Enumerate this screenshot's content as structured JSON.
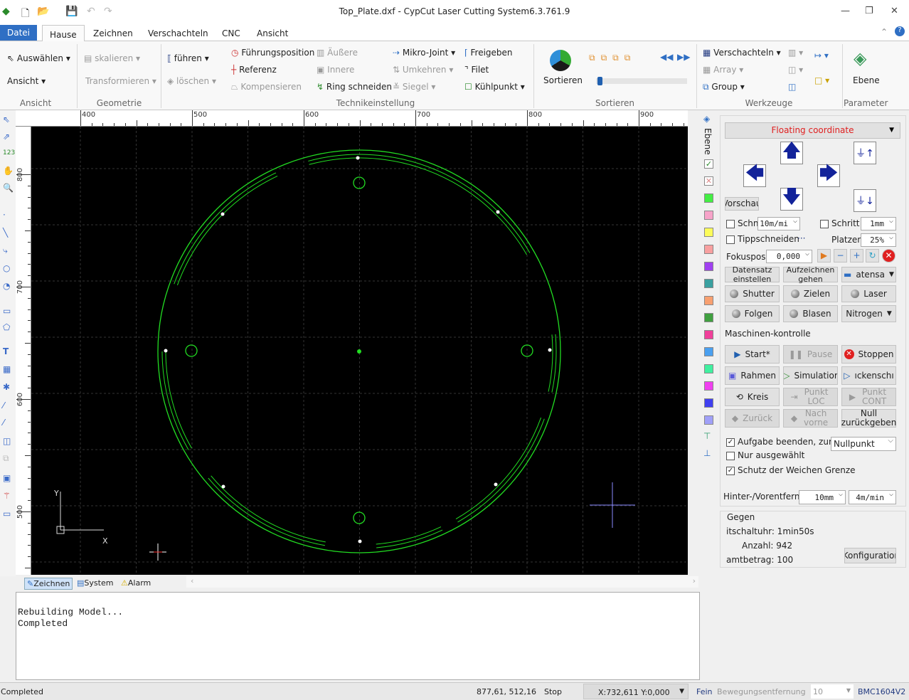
{
  "window": {
    "title": "Top_Plate.dxf - CypCut Laser Cutting System6.3.761.9"
  },
  "tabs": [
    "Datei",
    "Hause",
    "Zeichnen",
    "Verschachteln",
    "CNC",
    "Ansicht"
  ],
  "ribbon": {
    "ansicht": {
      "auswaehlen": "Auswählen",
      "ansicht": "Ansicht",
      "group": "Ansicht"
    },
    "geometrie": {
      "skalieren": "skalieren",
      "transformieren": "Transformieren",
      "group": "Geometrie"
    },
    "technik": {
      "fuehren": "führen",
      "loeschen": "löschen",
      "fuehrungsposition": "Führungsposition",
      "referenz": "Referenz",
      "kompensieren": "Kompensieren",
      "aeussere": "Äußere",
      "innere": "Innere",
      "ring": "Ring schneiden",
      "mikro": "Mikro-Joint",
      "umkehren": "Umkehren",
      "siegel": "Siegel",
      "freigeben": "Freigeben",
      "filet": "Filet",
      "kuehlpunkt": "Kühlpunkt",
      "group": "Technikeinstellung"
    },
    "sortieren": {
      "label": "Sortieren",
      "group": "Sortieren",
      "slider": 0.02
    },
    "werkzeuge": {
      "verschachteln": "Verschachteln",
      "array": "Array",
      "group_btn": "Group",
      "group": "Werkzeuge"
    },
    "parameter": {
      "ebene": "Ebene",
      "group": "Parameter"
    }
  },
  "rulers": {
    "h": [
      "400",
      "500",
      "600",
      "700",
      "800",
      "900"
    ],
    "v": [
      "800",
      "700",
      "600",
      "500"
    ]
  },
  "canvas": {
    "axis_x": "X",
    "axis_y": "Y",
    "path_color": "#22dd22"
  },
  "layers": {
    "title": "Ebene",
    "colors": [
      "#44ee44",
      "#f7a3c9",
      "#fcfc5a",
      "#f8a0a0",
      "#a040f0",
      "#3aa0a0",
      "#f8a070",
      "#40a040",
      "#f0409a",
      "#4aa0f0",
      "#40f0a0",
      "#f040f0",
      "#4040f0",
      "#a0a0f8"
    ]
  },
  "panel": {
    "mode": "Floating coordinate",
    "vorschau": "Vorschau",
    "schn_label": "Schn",
    "schn_value": "10m/mi",
    "schritt_label": "Schritt",
    "schritt_value": "1mm",
    "tippschneiden": "Tippschneiden",
    "tipp_more": "···",
    "platzen_label": "Platzen",
    "platzen_value": "25%",
    "fokus_label": "Fokusposit",
    "fokus_value": "0,000",
    "datensatz": "Datensatz einstellen",
    "aufzeichnen": "Aufzeichnen gehen",
    "datensatz2": "atensa",
    "shutter": "Shutter",
    "zielen": "Zielen",
    "laser": "Laser",
    "folgen": "Folgen",
    "blasen": "Blasen",
    "nitrogen": "Nitrogen",
    "mk_title": "Maschinen-kontrolle",
    "start": "Start*",
    "pause": "Pause",
    "stoppen": "Stoppen",
    "rahmen": "Rahmen",
    "simulation": "Simulatior",
    "lueckenschnitt": "ıckenschı",
    "kreis": "Kreis",
    "punkt_loc": "Punkt LOC",
    "punkt_cont": "Punkt CONT",
    "zurueck": "Zurück",
    "nach_vorne": "Nach vorne",
    "null": "Null zurückgeben",
    "aufgabe": "Aufgabe beenden, zurü",
    "aufgabe_checked": true,
    "nullpunkt": "Nullpunkt",
    "nur": "Nur ausgewählt",
    "nur_checked": false,
    "schutz": "Schutz der Weichen Grenze",
    "schutz_checked": true,
    "hinter": "Hinter-/Vorentfernu",
    "hinter_value": "10mm",
    "speed_value": "4m/min"
  },
  "gegen": {
    "title": "Gegen",
    "zeit": "itschaltuhr: 1min50s",
    "anzahl": "Anzahl: 942",
    "gesamt": "amtbetrag: 100",
    "konfig": "Konfiguratior"
  },
  "bottom_tabs": [
    "Zeichnen",
    "System",
    "Alarm"
  ],
  "console": [
    "Rebuilding Model...",
    "Completed"
  ],
  "status": {
    "left": "Completed",
    "coords": "877,61, 512,16",
    "state": "Stop",
    "pos": "X:732,611 Y:0,000",
    "fein": "Fein",
    "bewegung": "Bewegungsentfernung",
    "bew_value": "10",
    "device": "BMC1604V2"
  }
}
